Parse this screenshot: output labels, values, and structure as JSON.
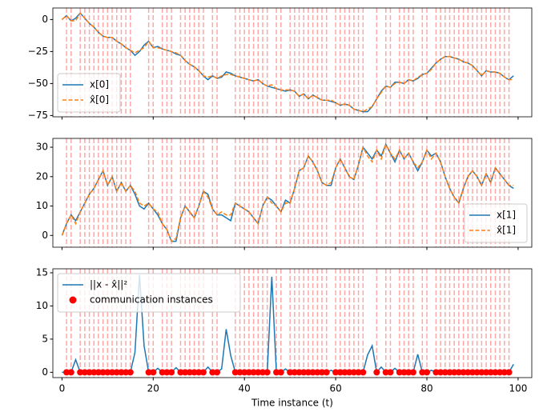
{
  "chart_data": [
    {
      "type": "line",
      "legend": "lower left",
      "xlim": [
        -2,
        103
      ],
      "xticks": [
        0,
        20,
        40,
        60,
        80,
        100
      ],
      "ylim": [
        -76,
        9
      ],
      "yticks": [
        {
          "value": -75,
          "label": "−75"
        },
        {
          "value": -50,
          "label": "−50"
        },
        {
          "value": -25,
          "label": "−25"
        },
        0
      ],
      "x": [
        0,
        1,
        2,
        3,
        4,
        5,
        6,
        7,
        8,
        9,
        10,
        11,
        12,
        13,
        14,
        15,
        16,
        17,
        18,
        19,
        20,
        21,
        22,
        23,
        24,
        25,
        26,
        27,
        28,
        29,
        30,
        31,
        32,
        33,
        34,
        35,
        36,
        37,
        38,
        39,
        40,
        41,
        42,
        43,
        44,
        45,
        46,
        47,
        48,
        49,
        50,
        51,
        52,
        53,
        54,
        55,
        56,
        57,
        58,
        59,
        60,
        61,
        62,
        63,
        64,
        65,
        66,
        67,
        68,
        69,
        70,
        71,
        72,
        73,
        74,
        75,
        76,
        77,
        78,
        79,
        80,
        81,
        82,
        83,
        84,
        85,
        86,
        87,
        88,
        89,
        90,
        91,
        92,
        93,
        94,
        95,
        96,
        97,
        98,
        99
      ],
      "series": [
        {
          "name": "x[0]",
          "color": "#1f77b4",
          "dash": false,
          "values": [
            0,
            3,
            -1,
            1,
            5,
            1,
            -3,
            -6,
            -10,
            -13,
            -14,
            -14,
            -17,
            -19,
            -22,
            -24,
            -28,
            -25,
            -20,
            -17,
            -22,
            -21,
            -23,
            -24,
            -25,
            -27,
            -28,
            -32,
            -35,
            -37,
            -40,
            -44,
            -47,
            -44,
            -46,
            -45,
            -41,
            -42,
            -44,
            -45,
            -46,
            -47,
            -48,
            -47,
            -50,
            -52,
            -53,
            -54,
            -55,
            -56,
            -55,
            -56,
            -60,
            -58,
            -62,
            -59,
            -61,
            -63,
            -63,
            -64,
            -65,
            -67,
            -66,
            -67,
            -70,
            -71,
            -72,
            -72,
            -68,
            -62,
            -56,
            -52,
            -53,
            -49,
            -49,
            -50,
            -47,
            -48,
            -46,
            -43,
            -42,
            -38,
            -34,
            -31,
            -29,
            -29,
            -30,
            -31,
            -33,
            -34,
            -36,
            -40,
            -44,
            -40,
            -41,
            -41,
            -42,
            -45,
            -47,
            -44
          ]
        },
        {
          "name": "x̂[0]",
          "color": "#ff7f0e",
          "dash": true,
          "values": [
            0,
            3,
            -1,
            -1,
            5,
            1,
            -3,
            -6,
            -10,
            -13,
            -14,
            -14,
            -17,
            -19,
            -22,
            -24,
            -26,
            -24,
            -22,
            -17,
            -22,
            -22,
            -23,
            -24,
            -25,
            -26,
            -28,
            -32,
            -35,
            -37,
            -40,
            -44,
            -45,
            -44,
            -46,
            -44,
            -43,
            -43,
            -44,
            -45,
            -46,
            -47,
            -48,
            -47,
            -50,
            -52,
            -51,
            -54,
            -55,
            -55,
            -55,
            -56,
            -60,
            -58,
            -62,
            -59,
            -61,
            -63,
            -63,
            -63,
            -65,
            -67,
            -66,
            -67,
            -70,
            -71,
            -72,
            -70,
            -68,
            -62,
            -57,
            -52,
            -53,
            -50,
            -49,
            -50,
            -47,
            -48,
            -45,
            -43,
            -42,
            -39,
            -34,
            -31,
            -29,
            -29,
            -30,
            -31,
            -33,
            -34,
            -36,
            -40,
            -44,
            -40,
            -41,
            -41,
            -42,
            -45,
            -47,
            -47
          ]
        }
      ]
    },
    {
      "type": "line",
      "legend": "lower right",
      "xlim": [
        -2,
        103
      ],
      "xticks": [
        0,
        20,
        40,
        60,
        80,
        100
      ],
      "ylim": [
        -4,
        33
      ],
      "yticks": [
        0,
        10,
        20,
        30
      ],
      "x": [
        0,
        1,
        2,
        3,
        4,
        5,
        6,
        7,
        8,
        9,
        10,
        11,
        12,
        13,
        14,
        15,
        16,
        17,
        18,
        19,
        20,
        21,
        22,
        23,
        24,
        25,
        26,
        27,
        28,
        29,
        30,
        31,
        32,
        33,
        34,
        35,
        36,
        37,
        38,
        39,
        40,
        41,
        42,
        43,
        44,
        45,
        46,
        47,
        48,
        49,
        50,
        51,
        52,
        53,
        54,
        55,
        56,
        57,
        58,
        59,
        60,
        61,
        62,
        63,
        64,
        65,
        66,
        67,
        68,
        69,
        70,
        71,
        72,
        73,
        74,
        75,
        76,
        77,
        78,
        79,
        80,
        81,
        82,
        83,
        84,
        85,
        86,
        87,
        88,
        89,
        90,
        91,
        92,
        93,
        94,
        95,
        96,
        97,
        98,
        99
      ],
      "series": [
        {
          "name": "x[1]",
          "color": "#1f77b4",
          "dash": false,
          "values": [
            0,
            4,
            7,
            5,
            8,
            11,
            14,
            16,
            19,
            22,
            17,
            20,
            15,
            18,
            15,
            17,
            14,
            10,
            9,
            11,
            9,
            7,
            4,
            2,
            -2,
            -2,
            6,
            10,
            8,
            6,
            10,
            15,
            14,
            9,
            7,
            7,
            6,
            5,
            11,
            10,
            9,
            8,
            6,
            4,
            10,
            13,
            12,
            10,
            8,
            12,
            11,
            16,
            22,
            23,
            27,
            25,
            22,
            18,
            17,
            17,
            23,
            26,
            23,
            20,
            19,
            24,
            30,
            28,
            26,
            29,
            27,
            31,
            28,
            25,
            29,
            26,
            28,
            25,
            22,
            25,
            29,
            27,
            28,
            25,
            20,
            16,
            13,
            11,
            16,
            20,
            22,
            20,
            17,
            21,
            18,
            23,
            21,
            19,
            17,
            16
          ]
        },
        {
          "name": "x̂[1]",
          "color": "#ff7f0e",
          "dash": true,
          "values": [
            0,
            4,
            7,
            4,
            8,
            11,
            14,
            16,
            19,
            22,
            17,
            20,
            15,
            18,
            15,
            17,
            15,
            11,
            10,
            11,
            9,
            8,
            4,
            2,
            -2,
            -1,
            6,
            10,
            8,
            6,
            10,
            15,
            13,
            9,
            7,
            8,
            7,
            7,
            11,
            10,
            9,
            8,
            6,
            4,
            10,
            13,
            11,
            10,
            8,
            11,
            11,
            16,
            22,
            23,
            27,
            25,
            22,
            18,
            17,
            18,
            23,
            26,
            23,
            20,
            19,
            24,
            30,
            27,
            25,
            29,
            26,
            31,
            28,
            26,
            29,
            26,
            28,
            25,
            23,
            25,
            29,
            26,
            28,
            25,
            20,
            16,
            13,
            11,
            16,
            20,
            22,
            20,
            17,
            21,
            18,
            23,
            21,
            19,
            17,
            17
          ]
        }
      ]
    },
    {
      "type": "line",
      "legend": "upper left",
      "xlabel": "Time instance (t)",
      "xlim": [
        -2,
        103
      ],
      "xticks": [
        0,
        20,
        40,
        60,
        80,
        100
      ],
      "ylim": [
        -0.8,
        15.6
      ],
      "yticks": [
        0,
        5,
        10,
        15
      ],
      "x": [
        0,
        1,
        2,
        3,
        4,
        5,
        6,
        7,
        8,
        9,
        10,
        11,
        12,
        13,
        14,
        15,
        16,
        17,
        18,
        19,
        20,
        21,
        22,
        23,
        24,
        25,
        26,
        27,
        28,
        29,
        30,
        31,
        32,
        33,
        34,
        35,
        36,
        37,
        38,
        39,
        40,
        41,
        42,
        43,
        44,
        45,
        46,
        47,
        48,
        49,
        50,
        51,
        52,
        53,
        54,
        55,
        56,
        57,
        58,
        59,
        60,
        61,
        62,
        63,
        64,
        65,
        66,
        67,
        68,
        69,
        70,
        71,
        72,
        73,
        74,
        75,
        76,
        77,
        78,
        79,
        80,
        81,
        82,
        83,
        84,
        85,
        86,
        87,
        88,
        89,
        90,
        91,
        92,
        93,
        94,
        95,
        96,
        97,
        98,
        99
      ],
      "series": [
        {
          "name": "||x - x̂||²",
          "color": "#1f77b4",
          "values": [
            0,
            0,
            0,
            1.9,
            0,
            0,
            0,
            0,
            0,
            0,
            0,
            0,
            0,
            0,
            0,
            0,
            3,
            14.7,
            4,
            0,
            0,
            0.6,
            0,
            0,
            0,
            0.7,
            0,
            0,
            0,
            0,
            0,
            0,
            0.8,
            0,
            0,
            0.5,
            6.5,
            2.5,
            0,
            0,
            0,
            0,
            0,
            0,
            0,
            0,
            14.4,
            0,
            0,
            0.5,
            0,
            0,
            0,
            0,
            0,
            0,
            0,
            0,
            0,
            0.3,
            0,
            0,
            0,
            0,
            0,
            0,
            0,
            2.6,
            4,
            0,
            0.8,
            0,
            0,
            0.6,
            0,
            0,
            0,
            0,
            2.7,
            0,
            0,
            0.3,
            0,
            0,
            0,
            0,
            0,
            0,
            0,
            0,
            0,
            0,
            0,
            0,
            0,
            0,
            0,
            0,
            0,
            1.2
          ]
        },
        {
          "name": "communication instances",
          "color": "#ff0000",
          "type": "scatter",
          "x": [
            1,
            2,
            4,
            5,
            6,
            7,
            8,
            9,
            10,
            11,
            12,
            13,
            14,
            15,
            19,
            20,
            22,
            23,
            24,
            26,
            27,
            28,
            29,
            30,
            31,
            33,
            34,
            38,
            39,
            40,
            41,
            42,
            43,
            44,
            45,
            47,
            48,
            50,
            51,
            52,
            53,
            54,
            55,
            56,
            57,
            58,
            60,
            61,
            62,
            63,
            64,
            65,
            66,
            69,
            71,
            72,
            74,
            75,
            76,
            77,
            79,
            80,
            82,
            83,
            84,
            85,
            86,
            87,
            88,
            89,
            90,
            91,
            92,
            93,
            94,
            95,
            96,
            97,
            98
          ],
          "values": [
            0,
            0,
            0,
            0,
            0,
            0,
            0,
            0,
            0,
            0,
            0,
            0,
            0,
            0,
            0,
            0,
            0,
            0,
            0,
            0,
            0,
            0,
            0,
            0,
            0,
            0,
            0,
            0,
            0,
            0,
            0,
            0,
            0,
            0,
            0,
            0,
            0,
            0,
            0,
            0,
            0,
            0,
            0,
            0,
            0,
            0,
            0,
            0,
            0,
            0,
            0,
            0,
            0,
            0,
            0,
            0,
            0,
            0,
            0,
            0,
            0,
            0,
            0,
            0,
            0,
            0,
            0,
            0,
            0,
            0,
            0,
            0,
            0,
            0,
            0,
            0,
            0,
            0,
            0
          ]
        }
      ]
    }
  ]
}
